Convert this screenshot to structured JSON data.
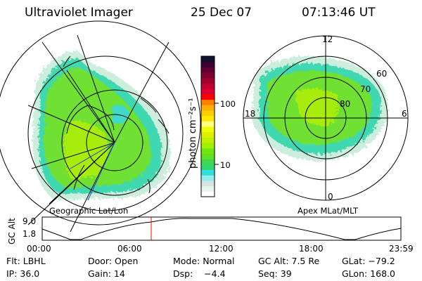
{
  "header": {
    "instrument": "Ultraviolet Imager",
    "date": "25 Dec 07",
    "time": "07:13:46 UT"
  },
  "colorbar": {
    "label": "photon cm⁻²s⁻¹",
    "ticks": [
      "100",
      "10"
    ],
    "colors_bottom_to_top": [
      "#ffffff",
      "#e8f4ee",
      "#d4e4e4",
      "#90eef0",
      "#30e0d8",
      "#30d870",
      "#40d850",
      "#60e020",
      "#70e810",
      "#a0f000",
      "#c0f000",
      "#e0f000",
      "#f0ff00",
      "#ffff80",
      "#ffe800",
      "#ffcc00",
      "#ffb000",
      "#ff8000",
      "#ff0000",
      "#e00030",
      "#c00030",
      "#a00030",
      "#800030",
      "#600030",
      "#400030",
      "#101030"
    ]
  },
  "left_map": {
    "caption": "Geographic Lat/Lon"
  },
  "right_map": {
    "caption": "Apex MLat/MLT",
    "mlt_labels": {
      "top": "12",
      "bottom": "0",
      "left": "18",
      "right": "6"
    },
    "lat_labels": [
      "60",
      "70",
      "80"
    ]
  },
  "alt_plot": {
    "ylabel": "GC Alt",
    "yticks": [
      "9.0",
      "1.8"
    ],
    "xticks": [
      "00:00",
      "06:00",
      "12:00",
      "18:00",
      "23:59"
    ],
    "marker_color": "#ff0000"
  },
  "info": {
    "row1": [
      "Flt: LBHL",
      "Door: Open",
      "Mode: Normal",
      "GC Alt: 7.5 Re",
      "GLat: −79.2"
    ],
    "row2": [
      "IP: 36.0",
      "Gain: 14",
      "Dsp:    −4.4",
      "Seq: 39",
      "GLon: 168.0"
    ]
  }
}
